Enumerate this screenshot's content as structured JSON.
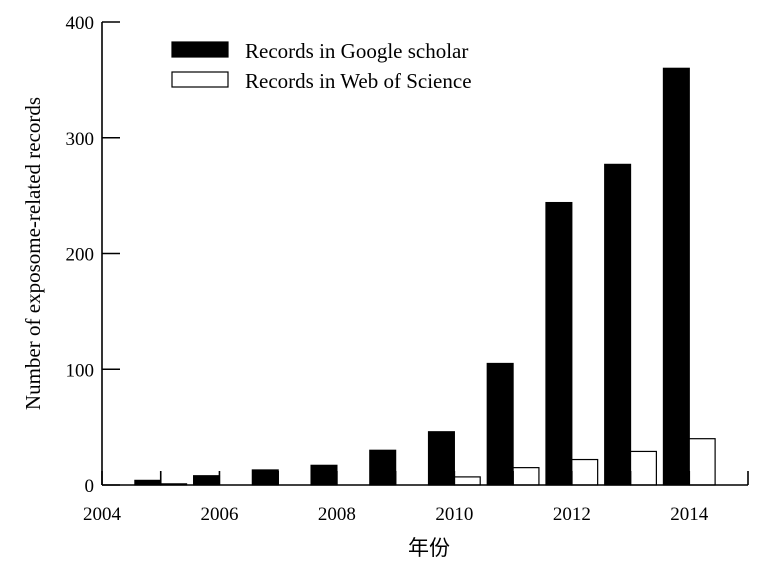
{
  "chart_data": {
    "type": "bar",
    "title": "",
    "xlabel": "年份",
    "ylabel": "Number of exposome-related records",
    "x": [
      2005,
      2006,
      2007,
      2008,
      2009,
      2010,
      2011,
      2012,
      2013,
      2014
    ],
    "xlim": [
      2004,
      2015
    ],
    "xticks": [
      "2004",
      "2006",
      "2008",
      "2010",
      "2012",
      "2014"
    ],
    "ylim": [
      0,
      400
    ],
    "yticks": [
      "0",
      "100",
      "200",
      "300",
      "400"
    ],
    "grid": false,
    "legend": "top-left",
    "series": [
      {
        "name": "Records in Google scholar",
        "color": "#000000",
        "values": [
          4,
          8,
          13,
          17,
          30,
          46,
          105,
          244,
          277,
          360
        ]
      },
      {
        "name": "Records in Web of Science",
        "color": "#ffffff",
        "values": [
          1,
          0,
          0,
          0,
          0,
          7,
          15,
          22,
          29,
          40
        ]
      }
    ]
  }
}
